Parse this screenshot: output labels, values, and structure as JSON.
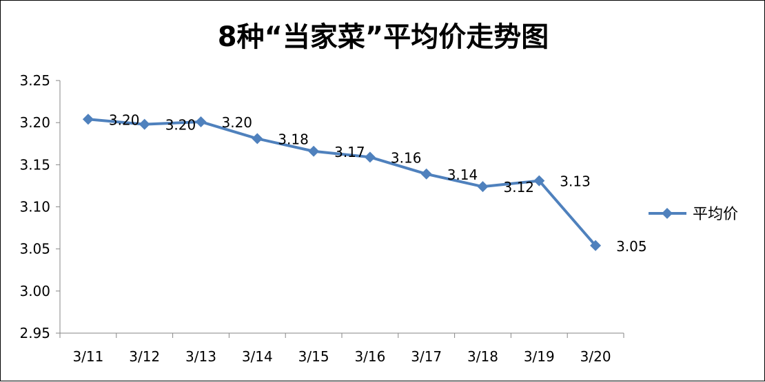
{
  "chart_data": {
    "type": "line",
    "title": "8种“当家菜”平均价走势图",
    "categories": [
      "3/11",
      "3/12",
      "3/13",
      "3/14",
      "3/15",
      "3/16",
      "3/17",
      "3/18",
      "3/19",
      "3/20"
    ],
    "series": [
      {
        "name": "平均价",
        "values": [
          3.204,
          3.198,
          3.201,
          3.181,
          3.166,
          3.159,
          3.139,
          3.124,
          3.131,
          3.054
        ],
        "labels": [
          "3.20",
          "3.20",
          "3.20",
          "3.18",
          "3.17",
          "3.16",
          "3.14",
          "3.12",
          "3.13",
          "3.05"
        ],
        "color": "#4F81BD",
        "marker": "diamond"
      }
    ],
    "yticks": [
      "3.25",
      "3.20",
      "3.15",
      "3.10",
      "3.05",
      "3.00",
      "2.95"
    ],
    "ylim": [
      2.95,
      3.25
    ],
    "grid": false,
    "legend_position": "right"
  }
}
